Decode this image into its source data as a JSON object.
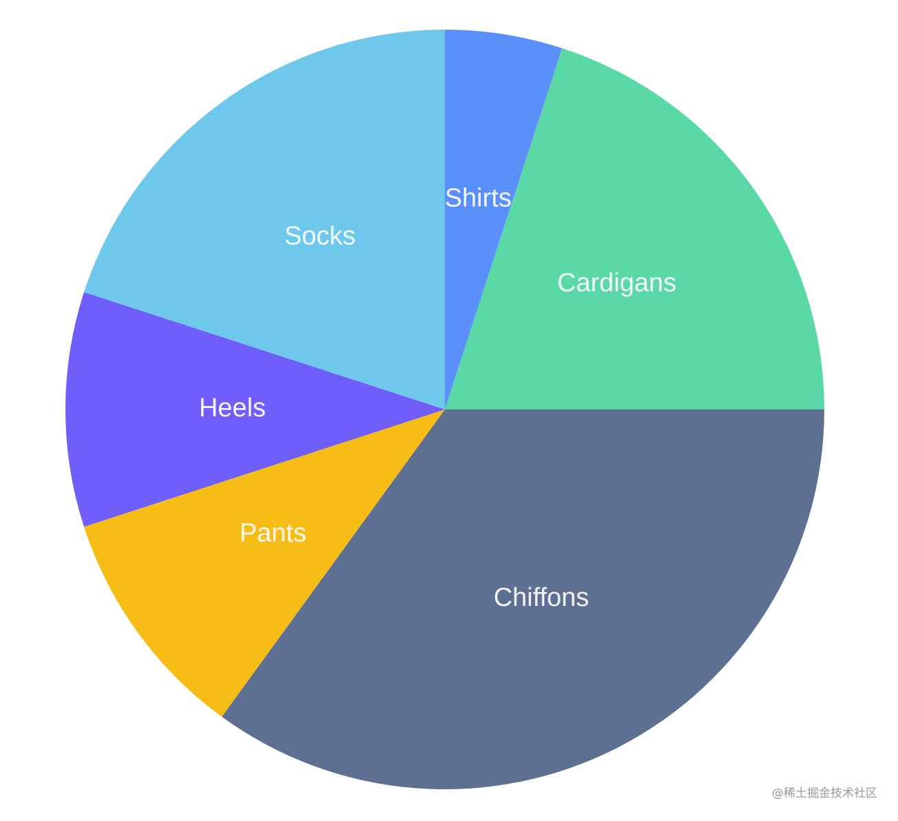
{
  "chart_data": {
    "type": "pie",
    "start_angle_deg": 0,
    "direction": "clockwise",
    "slices": [
      {
        "label": "Shirts",
        "value": 5,
        "color": "#5B8FF9"
      },
      {
        "label": "Cardigans",
        "value": 20,
        "color": "#5AD8A6"
      },
      {
        "label": "Chiffons",
        "value": 35,
        "color": "#5D7092"
      },
      {
        "label": "Pants",
        "value": 10,
        "color": "#F6BD16"
      },
      {
        "label": "Heels",
        "value": 10,
        "color": "#6F5EF9"
      },
      {
        "label": "Socks",
        "value": 20,
        "color": "#6DC8EC"
      }
    ]
  },
  "watermark": {
    "text": "@稀土掘金技术社区"
  }
}
